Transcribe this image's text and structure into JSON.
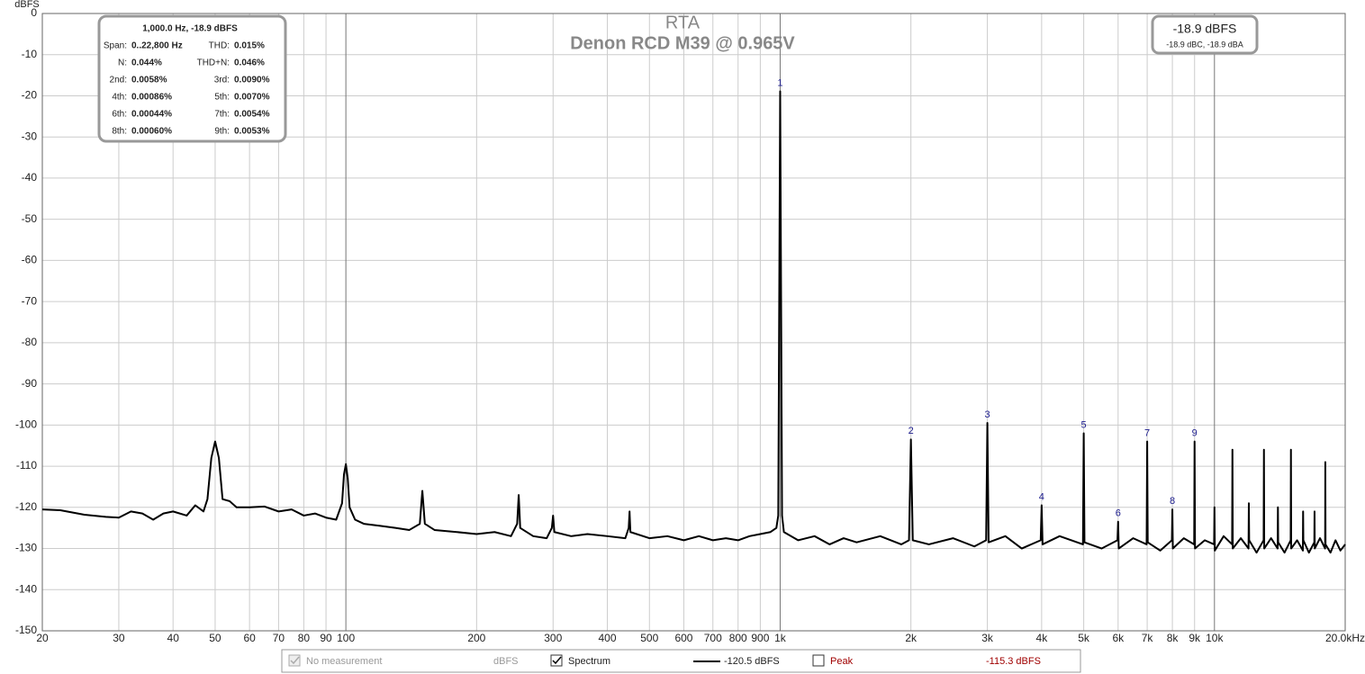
{
  "chart_data": {
    "type": "line",
    "title": "RTA",
    "subtitle": "Denon RCD M39 @ 0.965V",
    "y_unit": "dBFS",
    "xscale": "log",
    "xlim": [
      20,
      20000
    ],
    "ylim": [
      -150,
      0
    ],
    "grid": true,
    "xticks": [
      20,
      30,
      40,
      50,
      60,
      70,
      80,
      90,
      100,
      200,
      300,
      400,
      500,
      600,
      700,
      800,
      900,
      {
        "value": 1000,
        "label": "1k"
      },
      {
        "value": 2000,
        "label": "2k"
      },
      {
        "value": 3000,
        "label": "3k"
      },
      {
        "value": 4000,
        "label": "4k"
      },
      {
        "value": 5000,
        "label": "5k"
      },
      {
        "value": 6000,
        "label": "6k"
      },
      {
        "value": 7000,
        "label": "7k"
      },
      {
        "value": 8000,
        "label": "8k"
      },
      {
        "value": 9000,
        "label": "9k"
      },
      {
        "value": 10000,
        "label": "10k"
      },
      {
        "value": 20000,
        "label": "20.0kHz"
      }
    ],
    "yticks": [
      0,
      -10,
      -20,
      -30,
      -40,
      -50,
      -60,
      -70,
      -80,
      -90,
      -100,
      -110,
      -120,
      -130,
      -140,
      -150
    ],
    "x": [
      20,
      22,
      25,
      28,
      30,
      32,
      34,
      36,
      38,
      40,
      43,
      45,
      47,
      48,
      49,
      50,
      51,
      52,
      54,
      56,
      60,
      65,
      70,
      75,
      80,
      85,
      90,
      95,
      98,
      99,
      100,
      101,
      102,
      105,
      110,
      120,
      130,
      140,
      148,
      150,
      152,
      160,
      180,
      200,
      220,
      240,
      248,
      250,
      252,
      270,
      290,
      298,
      300,
      302,
      330,
      360,
      400,
      440,
      448,
      450,
      452,
      500,
      550,
      600,
      650,
      700,
      750,
      800,
      850,
      900,
      950,
      980,
      990,
      1000,
      1010,
      1020,
      1100,
      1200,
      1300,
      1400,
      1500,
      1700,
      1900,
      1980,
      2000,
      2020,
      2200,
      2500,
      2800,
      2980,
      3000,
      3020,
      3300,
      3600,
      3980,
      4000,
      4020,
      4400,
      4980,
      5000,
      5020,
      5500,
      5980,
      6000,
      6020,
      6500,
      6980,
      7000,
      7020,
      7500,
      7980,
      8000,
      8020,
      8500,
      8980,
      9000,
      9020,
      9500,
      9980,
      10000,
      10020,
      10500,
      10980,
      11000,
      11020,
      11500,
      11980,
      12000,
      12020,
      12500,
      12980,
      13000,
      13020,
      13500,
      13980,
      14000,
      14020,
      14500,
      14980,
      15000,
      15020,
      15500,
      15980,
      16000,
      16020,
      16500,
      16980,
      17000,
      17020,
      17500,
      17980,
      18000,
      18020,
      18500,
      19000,
      19500,
      20000
    ],
    "series": [
      {
        "name": "Spectrum",
        "color": "#000000",
        "values": [
          -120.5,
          -120.7,
          -121.8,
          -122.3,
          -122.5,
          -121,
          -121.5,
          -123,
          -121.5,
          -121,
          -122,
          -119.5,
          -121,
          -118,
          -108,
          -104,
          -108,
          -118,
          -118.5,
          -120,
          -120,
          -119.8,
          -121,
          -120.5,
          -122,
          -121.5,
          -122.5,
          -123,
          -119,
          -112,
          -109.5,
          -113,
          -120,
          -123,
          -124,
          -124.5,
          -125,
          -125.5,
          -124,
          -116,
          -124,
          -125.5,
          -126,
          -126.5,
          -126,
          -127,
          -124,
          -117,
          -125,
          -127,
          -127.5,
          -125,
          -122,
          -126,
          -127,
          -126.5,
          -127,
          -127.5,
          -125,
          -121,
          -126,
          -127.5,
          -127,
          -128,
          -127,
          -128,
          -127.5,
          -128,
          -127,
          -126.5,
          -126,
          -125,
          -122,
          -18.9,
          -122,
          -126,
          -128,
          -127,
          -129,
          -127.5,
          -128.5,
          -127,
          -129,
          -128,
          -103.5,
          -128,
          -129,
          -127.5,
          -129.5,
          -128,
          -99.5,
          -128.5,
          -127,
          -130,
          -128,
          -119.5,
          -129,
          -127,
          -129,
          -102,
          -128.5,
          -130,
          -128,
          -123.5,
          -130,
          -127.5,
          -129,
          -104,
          -128.5,
          -130.5,
          -128,
          -120.5,
          -130,
          -127.5,
          -129,
          -104,
          -130,
          -128,
          -129,
          -120,
          -130.5,
          -127,
          -129,
          -106,
          -130,
          -127.5,
          -130,
          -119,
          -128,
          -131,
          -128,
          -106,
          -130,
          -127.5,
          -130,
          -120,
          -128.5,
          -131,
          -128,
          -106,
          -130,
          -128,
          -130.5,
          -121,
          -128,
          -131,
          -128.5,
          -121,
          -130,
          -127.5,
          -130,
          -109,
          -129,
          -131,
          -128,
          -130.5,
          -129
        ]
      }
    ],
    "harmonic_markers": [
      {
        "label": "1",
        "x": 1000,
        "y": -18.9
      },
      {
        "label": "2",
        "x": 2000,
        "y": -103.5
      },
      {
        "label": "3",
        "x": 3000,
        "y": -99.5
      },
      {
        "label": "4",
        "x": 4000,
        "y": -119.5
      },
      {
        "label": "5",
        "x": 5000,
        "y": -102
      },
      {
        "label": "6",
        "x": 6000,
        "y": -123.5
      },
      {
        "label": "7",
        "x": 7000,
        "y": -104
      },
      {
        "label": "8",
        "x": 8000,
        "y": -120.5
      },
      {
        "label": "9",
        "x": 9000,
        "y": -104
      }
    ],
    "info_box": {
      "title": "1,000.0 Hz, -18.9 dBFS",
      "rows": [
        [
          "Span:",
          "0..22,800 Hz",
          "THD:",
          "0.015%"
        ],
        [
          "N:",
          "0.044%",
          "THD+N:",
          "0.046%"
        ],
        [
          "2nd:",
          "0.0058%",
          "3rd:",
          "0.0090%"
        ],
        [
          "4th:",
          "0.00086%",
          "5th:",
          "0.0070%"
        ],
        [
          "6th:",
          "0.00044%",
          "7th:",
          "0.0054%"
        ],
        [
          "8th:",
          "0.00060%",
          "9th:",
          "0.0053%"
        ]
      ]
    },
    "level_box": {
      "main": "-18.9 dBFS",
      "sub": "-18.9 dBC, -18.9 dBA"
    },
    "legend_bar": {
      "no_measurement": "No measurement",
      "no_measurement_unit": "dBFS",
      "series_reading": "-120.5 dBFS",
      "peak_label": "Peak",
      "peak_reading": "-115.3 dBFS"
    }
  }
}
